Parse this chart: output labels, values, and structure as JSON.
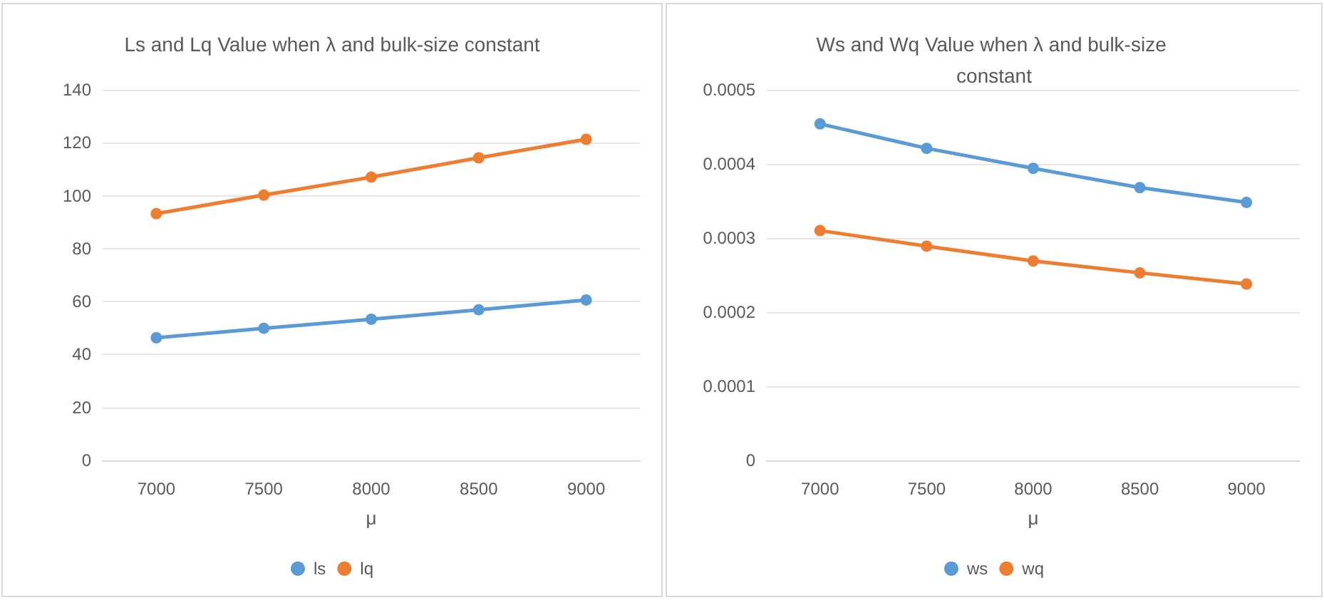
{
  "chart_data": [
    {
      "type": "line",
      "title": "Ls and Lq Value when λ and bulk-size constant",
      "xlabel": "μ",
      "categories": [
        "7000",
        "7500",
        "8000",
        "8500",
        "9000"
      ],
      "series": [
        {
          "name": "ls",
          "color": "#5b9bd5",
          "values": [
            46.3,
            49.9,
            53.3,
            56.9,
            60.6
          ]
        },
        {
          "name": "lq",
          "color": "#ed7d31",
          "values": [
            93.2,
            100.2,
            107,
            114.3,
            121.3
          ]
        }
      ],
      "ylim": [
        0,
        140
      ],
      "yticks": [
        0,
        20,
        40,
        60,
        80,
        100,
        120,
        140
      ],
      "grid": "y",
      "legend": "bottom",
      "marker": "circle",
      "line_style": "solid"
    },
    {
      "type": "line",
      "title": "Ws and Wq Value when λ and bulk-size constant",
      "xlabel": "μ",
      "categories": [
        "7000",
        "7500",
        "8000",
        "8500",
        "9000"
      ],
      "series": [
        {
          "name": "ws",
          "color": "#5b9bd5",
          "values": [
            0.000454,
            0.000421,
            0.000394,
            0.000368,
            0.000348
          ]
        },
        {
          "name": "wq",
          "color": "#ed7d31",
          "values": [
            0.00031,
            0.000289,
            0.000269,
            0.000253,
            0.000238
          ]
        }
      ],
      "ylim": [
        0,
        0.0005
      ],
      "yticks": [
        0,
        0.0001,
        0.0002,
        0.0003,
        0.0004,
        0.0005
      ],
      "grid": "y",
      "legend": "bottom",
      "marker": "circle",
      "line_style": "solid"
    }
  ]
}
